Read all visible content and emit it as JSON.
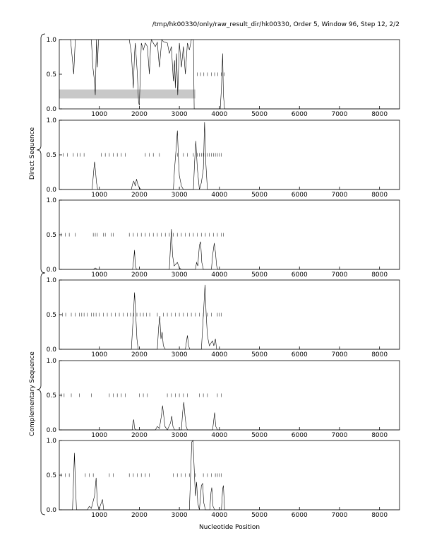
{
  "title": "/tmp/hk00330/only/raw_result_dir/hk00330, Order 5, Window 96, Step 12, 2/2",
  "xlabel": "Nucleotide Position",
  "groups": [
    {
      "label": "Direct Sequence"
    },
    {
      "label": "Complementary Sequence"
    }
  ],
  "chart_data": {
    "type": "line",
    "title": "/tmp/hk00330/only/raw_result_dir/hk00330, Order 5, Window 96, Step 12, 2/2",
    "xlabel": "Nucleotide Position",
    "ylabel": "",
    "xlim": [
      0,
      8500
    ],
    "ylim": [
      0,
      1.0
    ],
    "xticks": [
      1000,
      2000,
      3000,
      4000,
      5000,
      6000,
      7000,
      8000
    ],
    "yticks": [
      0.0,
      0.5,
      1.0
    ],
    "ytick_labels": [
      "0.0",
      "0.5",
      "1.0"
    ],
    "grid": false,
    "panels": [
      {
        "group": "Direct Sequence",
        "highlight": {
          "x": [
            0,
            3400
          ],
          "y": [
            0.15,
            0.28
          ],
          "color": "#c8c8c8"
        },
        "orf_marks": {
          "y": 0.5,
          "x": [
            3450,
            3530,
            3610,
            3700,
            3800,
            3880,
            3960,
            4050,
            4120
          ]
        },
        "trace": [
          [
            0,
            1.0
          ],
          [
            280,
            1.0
          ],
          [
            330,
            0.7
          ],
          [
            360,
            0.5
          ],
          [
            400,
            1.0
          ],
          [
            800,
            1.0
          ],
          [
            840,
            0.6
          ],
          [
            870,
            0.45
          ],
          [
            900,
            0.2
          ],
          [
            930,
            1.0
          ],
          [
            950,
            0.6
          ],
          [
            980,
            1.0
          ],
          [
            1750,
            1.0
          ],
          [
            1800,
            0.8
          ],
          [
            1850,
            0.3
          ],
          [
            1880,
            0.8
          ],
          [
            1900,
            0.95
          ],
          [
            1950,
            0.5
          ],
          [
            1980,
            0.1
          ],
          [
            2000,
            0.05
          ],
          [
            2030,
            0.6
          ],
          [
            2050,
            0.95
          ],
          [
            2100,
            0.85
          ],
          [
            2150,
            0.95
          ],
          [
            2200,
            0.9
          ],
          [
            2250,
            0.5
          ],
          [
            2280,
            0.9
          ],
          [
            2300,
            1.0
          ],
          [
            2400,
            0.9
          ],
          [
            2450,
            0.96
          ],
          [
            2500,
            0.6
          ],
          [
            2530,
            0.8
          ],
          [
            2560,
            1.0
          ],
          [
            2600,
            0.97
          ],
          [
            2700,
            0.95
          ],
          [
            2750,
            0.8
          ],
          [
            2800,
            0.9
          ],
          [
            2850,
            0.4
          ],
          [
            2880,
            0.7
          ],
          [
            2900,
            0.3
          ],
          [
            2930,
            0.8
          ],
          [
            2960,
            0.2
          ],
          [
            3000,
            0.95
          ],
          [
            3050,
            0.6
          ],
          [
            3100,
            0.9
          ],
          [
            3150,
            0.5
          ],
          [
            3200,
            0.95
          ],
          [
            3250,
            0.85
          ],
          [
            3300,
            1.0
          ],
          [
            3350,
            1.0
          ],
          [
            3370,
            0.0
          ],
          [
            4020,
            0.0
          ],
          [
            4050,
            0.3
          ],
          [
            4080,
            0.8
          ],
          [
            4100,
            0.2
          ],
          [
            4130,
            0.0
          ],
          [
            8500,
            0.0
          ]
        ]
      },
      {
        "group": "Direct Sequence",
        "orf_marks": {
          "y": 0.5,
          "x": [
            100,
            200,
            350,
            450,
            520,
            620,
            1050,
            1150,
            1250,
            1350,
            1450,
            1550,
            1650,
            2150,
            2250,
            2350,
            2500,
            2950,
            3100,
            3200,
            3350,
            3450,
            3500,
            3550,
            3600,
            3650,
            3700,
            3750,
            3800,
            3850,
            3900,
            3950,
            4000,
            4050
          ]
        },
        "trace": [
          [
            0,
            0.0
          ],
          [
            820,
            0.0
          ],
          [
            850,
            0.2
          ],
          [
            880,
            0.4
          ],
          [
            900,
            0.3
          ],
          [
            930,
            0.1
          ],
          [
            960,
            0.0
          ],
          [
            1800,
            0.0
          ],
          [
            1830,
            0.08
          ],
          [
            1860,
            0.12
          ],
          [
            1900,
            0.05
          ],
          [
            1930,
            0.15
          ],
          [
            1960,
            0.08
          ],
          [
            2000,
            0.02
          ],
          [
            2050,
            0.0
          ],
          [
            2850,
            0.0
          ],
          [
            2880,
            0.3
          ],
          [
            2920,
            0.6
          ],
          [
            2950,
            0.85
          ],
          [
            2980,
            0.4
          ],
          [
            3000,
            0.2
          ],
          [
            3050,
            0.05
          ],
          [
            3100,
            0.0
          ],
          [
            3350,
            0.0
          ],
          [
            3380,
            0.4
          ],
          [
            3410,
            0.7
          ],
          [
            3450,
            0.3
          ],
          [
            3500,
            0.0
          ],
          [
            3550,
            0.1
          ],
          [
            3600,
            0.3
          ],
          [
            3630,
            0.97
          ],
          [
            3660,
            0.4
          ],
          [
            3700,
            0.0
          ],
          [
            8500,
            0.0
          ]
        ]
      },
      {
        "group": "Direct Sequence",
        "orf_marks": {
          "y": 0.5,
          "x": [
            50,
            150,
            250,
            400,
            850,
            900,
            950,
            1100,
            1150,
            1300,
            1350,
            1750,
            1850,
            1950,
            2050,
            2150,
            2250,
            2350,
            2450,
            2550,
            2650,
            2750,
            2850,
            2950,
            3050,
            3150,
            3250,
            3350,
            3450,
            3550,
            3650,
            3750,
            3850,
            3950,
            4050,
            4100
          ]
        },
        "trace": [
          [
            0,
            0.0
          ],
          [
            850,
            0.0
          ],
          [
            900,
            0.02
          ],
          [
            950,
            0.0
          ],
          [
            1830,
            0.0
          ],
          [
            1860,
            0.15
          ],
          [
            1880,
            0.28
          ],
          [
            1900,
            0.05
          ],
          [
            1930,
            0.0
          ],
          [
            2750,
            0.0
          ],
          [
            2780,
            0.35
          ],
          [
            2800,
            0.58
          ],
          [
            2830,
            0.2
          ],
          [
            2870,
            0.05
          ],
          [
            2950,
            0.1
          ],
          [
            3000,
            0.02
          ],
          [
            3050,
            0.0
          ],
          [
            3400,
            0.0
          ],
          [
            3430,
            0.1
          ],
          [
            3460,
            0.05
          ],
          [
            3500,
            0.35
          ],
          [
            3530,
            0.4
          ],
          [
            3560,
            0.1
          ],
          [
            3600,
            0.0
          ],
          [
            3800,
            0.0
          ],
          [
            3830,
            0.2
          ],
          [
            3870,
            0.38
          ],
          [
            3900,
            0.25
          ],
          [
            3930,
            0.05
          ],
          [
            3960,
            0.0
          ],
          [
            8500,
            0.0
          ]
        ]
      },
      {
        "group": "Complementary Sequence",
        "orf_marks": {
          "y": 0.5,
          "x": [
            80,
            160,
            300,
            400,
            500,
            560,
            620,
            700,
            800,
            860,
            920,
            1000,
            1100,
            1200,
            1300,
            1400,
            1500,
            1600,
            1700,
            1780,
            1860,
            1940,
            2020,
            2100,
            2180,
            2260,
            2450,
            2600,
            2700,
            2800,
            2900,
            3000,
            3100,
            3200,
            3300,
            3400,
            3500,
            3600,
            3700,
            3800,
            3950,
            4000,
            4050
          ]
        },
        "trace": [
          [
            0,
            0.0
          ],
          [
            1800,
            0.0
          ],
          [
            1830,
            0.3
          ],
          [
            1860,
            0.6
          ],
          [
            1880,
            0.82
          ],
          [
            1910,
            0.5
          ],
          [
            1940,
            0.15
          ],
          [
            1970,
            0.0
          ],
          [
            2450,
            0.0
          ],
          [
            2480,
            0.3
          ],
          [
            2510,
            0.48
          ],
          [
            2540,
            0.15
          ],
          [
            2570,
            0.25
          ],
          [
            2600,
            0.05
          ],
          [
            2650,
            0.0
          ],
          [
            3150,
            0.0
          ],
          [
            3180,
            0.12
          ],
          [
            3200,
            0.2
          ],
          [
            3230,
            0.05
          ],
          [
            3260,
            0.0
          ],
          [
            3550,
            0.0
          ],
          [
            3580,
            0.3
          ],
          [
            3610,
            0.6
          ],
          [
            3640,
            0.93
          ],
          [
            3670,
            0.5
          ],
          [
            3700,
            0.2
          ],
          [
            3750,
            0.05
          ],
          [
            3800,
            0.1
          ],
          [
            3830,
            0.12
          ],
          [
            3860,
            0.05
          ],
          [
            3900,
            0.15
          ],
          [
            3930,
            0.0
          ],
          [
            8500,
            0.0
          ]
        ]
      },
      {
        "group": "Complementary Sequence",
        "orf_marks": {
          "y": 0.5,
          "x": [
            50,
            120,
            300,
            500,
            800,
            1250,
            1350,
            1450,
            1550,
            1650,
            2000,
            2100,
            2200,
            2700,
            2800,
            2900,
            3000,
            3100,
            3200,
            3500,
            3600,
            3700,
            3950,
            4050
          ]
        },
        "trace": [
          [
            0,
            0.0
          ],
          [
            1820,
            0.0
          ],
          [
            1840,
            0.1
          ],
          [
            1860,
            0.15
          ],
          [
            1880,
            0.02
          ],
          [
            1920,
            0.0
          ],
          [
            2400,
            0.0
          ],
          [
            2450,
            0.05
          ],
          [
            2500,
            0.02
          ],
          [
            2550,
            0.2
          ],
          [
            2580,
            0.35
          ],
          [
            2610,
            0.2
          ],
          [
            2640,
            0.05
          ],
          [
            2700,
            0.0
          ],
          [
            2780,
            0.1
          ],
          [
            2810,
            0.2
          ],
          [
            2840,
            0.05
          ],
          [
            2880,
            0.0
          ],
          [
            3050,
            0.0
          ],
          [
            3080,
            0.25
          ],
          [
            3110,
            0.4
          ],
          [
            3140,
            0.2
          ],
          [
            3170,
            0.05
          ],
          [
            3200,
            0.0
          ],
          [
            3830,
            0.0
          ],
          [
            3860,
            0.15
          ],
          [
            3880,
            0.25
          ],
          [
            3910,
            0.05
          ],
          [
            3950,
            0.0
          ],
          [
            8500,
            0.0
          ]
        ]
      },
      {
        "group": "Complementary Sequence",
        "orf_marks": {
          "y": 0.5,
          "x": [
            50,
            150,
            250,
            650,
            750,
            850,
            1250,
            1350,
            1750,
            1850,
            1950,
            2050,
            2150,
            2250,
            2850,
            2950,
            3050,
            3150,
            3250,
            3400,
            3600,
            3700,
            3800,
            3900,
            3950,
            4000,
            4050
          ]
        },
        "trace": [
          [
            0,
            0.0
          ],
          [
            330,
            0.0
          ],
          [
            360,
            0.5
          ],
          [
            380,
            0.82
          ],
          [
            400,
            0.4
          ],
          [
            430,
            0.0
          ],
          [
            700,
            0.0
          ],
          [
            750,
            0.05
          ],
          [
            800,
            0.02
          ],
          [
            880,
            0.2
          ],
          [
            920,
            0.46
          ],
          [
            950,
            0.1
          ],
          [
            990,
            0.0
          ],
          [
            1050,
            0.1
          ],
          [
            1080,
            0.15
          ],
          [
            1110,
            0.0
          ],
          [
            3250,
            0.0
          ],
          [
            3280,
            0.5
          ],
          [
            3310,
            0.98
          ],
          [
            3340,
            1.0
          ],
          [
            3370,
            0.6
          ],
          [
            3400,
            0.2
          ],
          [
            3430,
            0.4
          ],
          [
            3460,
            0.1
          ],
          [
            3500,
            0.0
          ],
          [
            3550,
            0.35
          ],
          [
            3580,
            0.38
          ],
          [
            3610,
            0.1
          ],
          [
            3650,
            0.0
          ],
          [
            3760,
            0.0
          ],
          [
            3790,
            0.25
          ],
          [
            3810,
            0.32
          ],
          [
            3840,
            0.05
          ],
          [
            3880,
            0.0
          ],
          [
            4050,
            0.0
          ],
          [
            4080,
            0.3
          ],
          [
            4100,
            0.35
          ],
          [
            4130,
            0.0
          ],
          [
            8500,
            0.0
          ]
        ]
      }
    ]
  }
}
